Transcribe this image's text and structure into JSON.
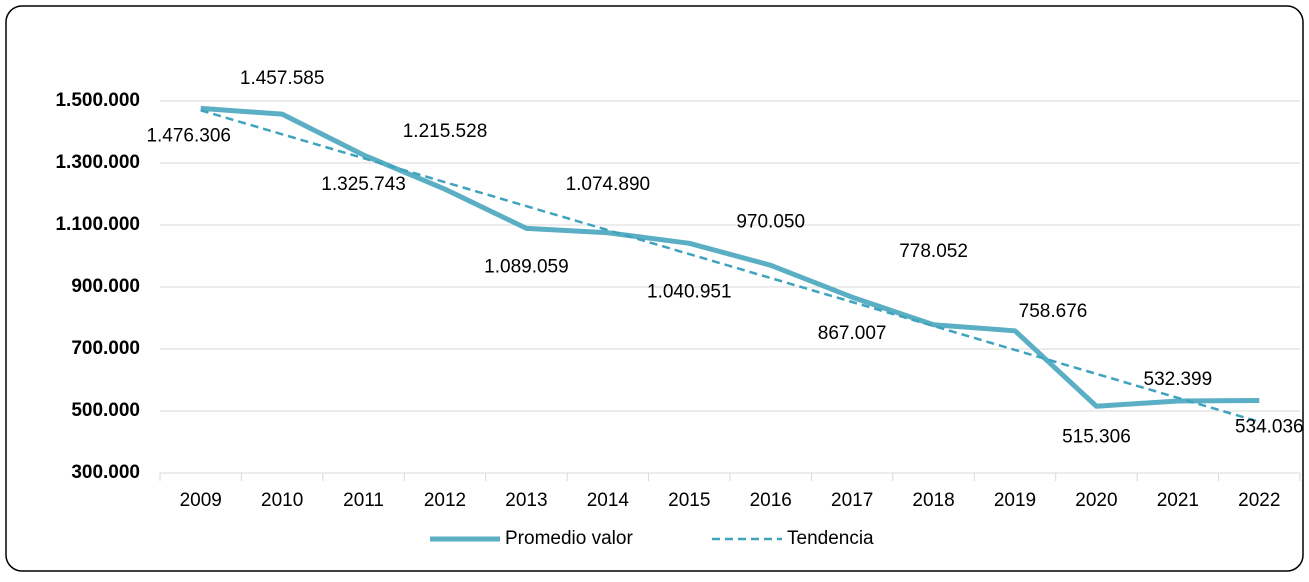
{
  "chart_data": {
    "type": "line",
    "categories": [
      "2009",
      "2010",
      "2011",
      "2012",
      "2013",
      "2014",
      "2015",
      "2016",
      "2017",
      "2018",
      "2019",
      "2020",
      "2021",
      "2022"
    ],
    "series": [
      {
        "name": "Promedio valor",
        "color": "#5aafc4",
        "values": [
          1476306,
          1457585,
          1325743,
          1215528,
          1089059,
          1074890,
          1040951,
          970050,
          867007,
          778052,
          758676,
          515306,
          532399,
          534036
        ],
        "value_labels": [
          "1.476.306",
          "1.457.585",
          "1.325.743",
          "1.215.528",
          "1.089.059",
          "1.074.890",
          "1.040.951",
          "970.050",
          "867.007",
          "778.052",
          "758.676",
          "515.306",
          "532.399",
          "534.036"
        ]
      },
      {
        "name": "Tendencia",
        "color": "#3fa3bd",
        "dashed": true,
        "values": [
          1470000,
          1392700,
          1315400,
          1238100,
          1160800,
          1083500,
          1006200,
          928900,
          851600,
          774300,
          697000,
          619700,
          542400,
          465100
        ]
      }
    ],
    "ylim": [
      300000,
      1500000
    ],
    "yticks": [
      {
        "value": 300000,
        "label": "300.000"
      },
      {
        "value": 500000,
        "label": "500.000"
      },
      {
        "value": 700000,
        "label": "700.000"
      },
      {
        "value": 900000,
        "label": "900.000"
      },
      {
        "value": 1100000,
        "label": "1.100.000"
      },
      {
        "value": 1300000,
        "label": "1.300.000"
      },
      {
        "value": 1500000,
        "label": "1.500.000"
      }
    ],
    "grid": true,
    "legend": "bottom"
  }
}
